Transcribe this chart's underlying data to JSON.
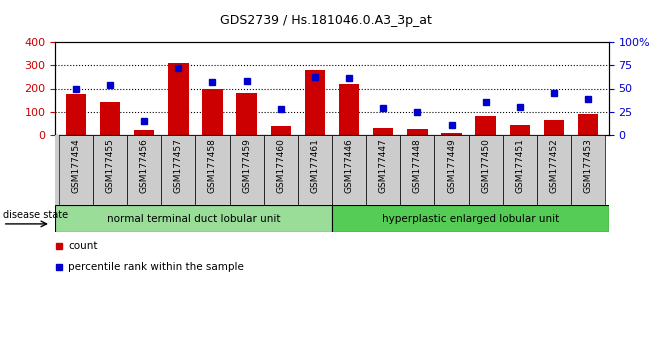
{
  "title": "GDS2739 / Hs.181046.0.A3_3p_at",
  "categories": [
    "GSM177454",
    "GSM177455",
    "GSM177456",
    "GSM177457",
    "GSM177458",
    "GSM177459",
    "GSM177460",
    "GSM177461",
    "GSM177446",
    "GSM177447",
    "GSM177448",
    "GSM177449",
    "GSM177450",
    "GSM177451",
    "GSM177452",
    "GSM177453"
  ],
  "counts": [
    175,
    140,
    18,
    310,
    200,
    180,
    38,
    280,
    218,
    28,
    22,
    5,
    82,
    42,
    65,
    90
  ],
  "percentiles": [
    49,
    54,
    15,
    72,
    57,
    58,
    28,
    62,
    61,
    29,
    24,
    10,
    35,
    30,
    45,
    39
  ],
  "bar_color": "#cc0000",
  "dot_color": "#0000cc",
  "ylim_left": [
    0,
    400
  ],
  "ylim_right": [
    0,
    100
  ],
  "yticks_left": [
    0,
    100,
    200,
    300,
    400
  ],
  "yticks_right": [
    0,
    25,
    50,
    75,
    100
  ],
  "yticklabels_right": [
    "0",
    "25",
    "50",
    "75",
    "100%"
  ],
  "group1_label": "normal terminal duct lobular unit",
  "group2_label": "hyperplastic enlarged lobular unit",
  "group1_count": 8,
  "group2_count": 8,
  "disease_state_label": "disease state",
  "legend_count_label": "count",
  "legend_percentile_label": "percentile rank within the sample",
  "group1_color": "#99dd99",
  "group2_color": "#55cc55",
  "tick_bg_color": "#cccccc",
  "bar_color_red": "#cc0000",
  "dot_color_blue": "#0000cc"
}
